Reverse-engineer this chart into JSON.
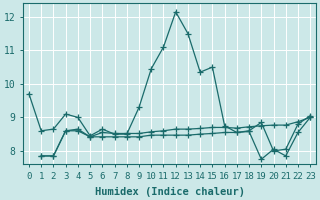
{
  "xlabel": "Humidex (Indice chaleur)",
  "ylabel": "",
  "bg_color": "#cce8e8",
  "grid_color": "#ffffff",
  "line_color": "#1a6b6b",
  "xlim": [
    -0.5,
    23.5
  ],
  "ylim": [
    7.6,
    12.4
  ],
  "yticks": [
    8,
    9,
    10,
    11,
    12
  ],
  "xticks": [
    0,
    1,
    2,
    3,
    4,
    5,
    6,
    7,
    8,
    9,
    10,
    11,
    12,
    13,
    14,
    15,
    16,
    17,
    18,
    19,
    20,
    21,
    22,
    23
  ],
  "series1_x": [
    0,
    1,
    2,
    3,
    4,
    5,
    6,
    7,
    8,
    9,
    10,
    11,
    12,
    13,
    14,
    15,
    16,
    17,
    18,
    19,
    20,
    21,
    22,
    23
  ],
  "series1_y": [
    9.7,
    8.6,
    8.65,
    9.1,
    9.0,
    8.45,
    8.65,
    8.5,
    8.5,
    9.3,
    10.45,
    11.1,
    12.15,
    11.5,
    10.35,
    10.5,
    8.75,
    8.55,
    8.6,
    8.85,
    8.0,
    8.05,
    8.8,
    9.05
  ],
  "series2_x": [
    1,
    2,
    3,
    4,
    5,
    6,
    7,
    8,
    9,
    10,
    11,
    12,
    13,
    14,
    15,
    16,
    17,
    18,
    19,
    20,
    21,
    22,
    23
  ],
  "series2_y": [
    7.85,
    7.85,
    8.6,
    8.6,
    8.42,
    8.42,
    8.42,
    8.42,
    8.42,
    8.47,
    8.47,
    8.47,
    8.47,
    8.5,
    8.52,
    8.55,
    8.55,
    8.58,
    7.75,
    8.05,
    7.85,
    8.55,
    9.0
  ],
  "series3_x": [
    1,
    2,
    3,
    4,
    5,
    6,
    7,
    8,
    9,
    10,
    11,
    12,
    13,
    14,
    15,
    16,
    17,
    18,
    19,
    20,
    21,
    22,
    23
  ],
  "series3_y": [
    7.85,
    7.85,
    8.6,
    8.65,
    8.42,
    8.55,
    8.52,
    8.52,
    8.52,
    8.57,
    8.6,
    8.65,
    8.65,
    8.67,
    8.7,
    8.7,
    8.68,
    8.72,
    8.75,
    8.77,
    8.77,
    8.87,
    9.0
  ],
  "xlabel_fontsize": 7.5,
  "tick_fontsize": 6.5,
  "linewidth": 0.9,
  "markersize": 4
}
